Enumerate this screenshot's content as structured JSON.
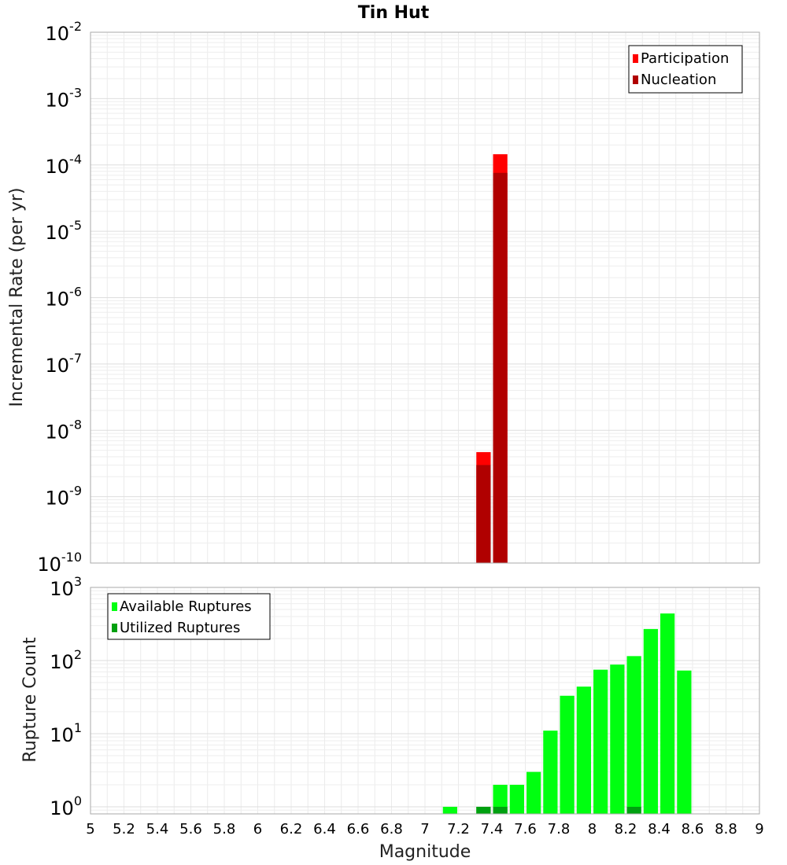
{
  "chart_data": [
    {
      "type": "bar",
      "title": "Tin Hut",
      "xlabel": "",
      "ylabel": "Incremental Rate (per yr)",
      "xlim": [
        5,
        9
      ],
      "ylim": [
        1e-10,
        0.01
      ],
      "yscale": "log",
      "bin_width": 0.1,
      "grid": true,
      "legend_position": "top-right",
      "y_tick_exponents": [
        "-2",
        "-3",
        "-4",
        "-5",
        "-6",
        "-7",
        "-8",
        "-9",
        "-10"
      ],
      "series": [
        {
          "name": "Participation",
          "color": "#ff0000",
          "points": [
            {
              "x": 7.35,
              "y": 4.7e-09
            },
            {
              "x": 7.45,
              "y": 0.000145
            }
          ]
        },
        {
          "name": "Nucleation",
          "color": "#b00000",
          "points": [
            {
              "x": 7.35,
              "y": 3e-09
            },
            {
              "x": 7.45,
              "y": 7.6e-05
            }
          ]
        }
      ]
    },
    {
      "type": "bar",
      "title": "",
      "xlabel": "Magnitude",
      "ylabel": "Rupture Count",
      "xlim": [
        5,
        9
      ],
      "ylim": [
        0.8,
        1000
      ],
      "yscale": "log",
      "bin_width": 0.1,
      "grid": true,
      "legend_position": "top-left",
      "x_ticks": [
        "5",
        "5.2",
        "5.4",
        "5.6",
        "5.8",
        "6",
        "6.2",
        "6.4",
        "6.6",
        "6.8",
        "7",
        "7.2",
        "7.4",
        "7.6",
        "7.8",
        "8",
        "8.2",
        "8.4",
        "8.6",
        "8.8",
        "9"
      ],
      "y_tick_exponents": [
        "3",
        "2",
        "1",
        "0"
      ],
      "series": [
        {
          "name": "Available Ruptures",
          "color": "#00ff10",
          "points": [
            {
              "x": 7.15,
              "y": 1
            },
            {
              "x": 7.35,
              "y": 1
            },
            {
              "x": 7.45,
              "y": 2
            },
            {
              "x": 7.55,
              "y": 2
            },
            {
              "x": 7.65,
              "y": 3
            },
            {
              "x": 7.75,
              "y": 11
            },
            {
              "x": 7.85,
              "y": 33
            },
            {
              "x": 7.95,
              "y": 44
            },
            {
              "x": 8.05,
              "y": 75
            },
            {
              "x": 8.15,
              "y": 88
            },
            {
              "x": 8.25,
              "y": 115
            },
            {
              "x": 8.35,
              "y": 270
            },
            {
              "x": 8.45,
              "y": 440
            },
            {
              "x": 8.55,
              "y": 73
            }
          ]
        },
        {
          "name": "Utilized Ruptures",
          "color": "#00a010",
          "points": [
            {
              "x": 7.35,
              "y": 1
            },
            {
              "x": 7.45,
              "y": 1
            },
            {
              "x": 8.25,
              "y": 1
            }
          ]
        }
      ]
    }
  ]
}
